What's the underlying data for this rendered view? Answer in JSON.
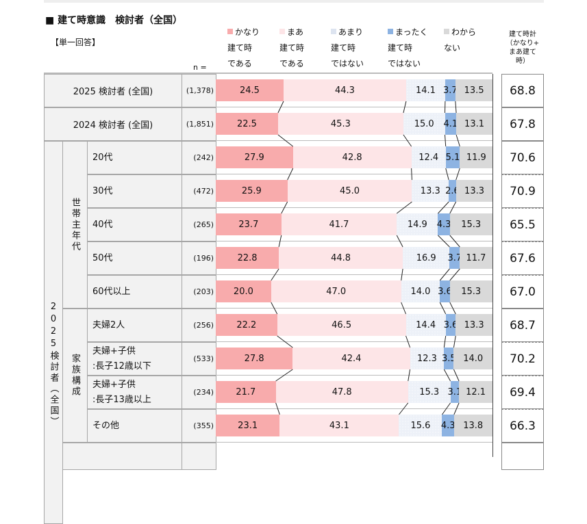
{
  "title": "■ 建て時意識　検討者（全国）",
  "subtitle": "【単一回答】",
  "n_label": "n =",
  "total_header": [
    "建て時計",
    "（かなり+",
    "まあ建て",
    "時）"
  ],
  "colors": {
    "kanari": "#f8abac",
    "maa": "#fde5e7",
    "amari": "#edf1f8",
    "mattaku": "#8db3e2",
    "wakaranai": "#d9d9d9"
  },
  "chart_data": {
    "type": "bar",
    "stacked": true,
    "orientation": "horizontal",
    "xlim": [
      0,
      100
    ],
    "legend": [
      {
        "key": "kanari",
        "lines": [
          "かなり",
          "建て時",
          "である"
        ]
      },
      {
        "key": "maa",
        "lines": [
          "まあ",
          "建て時",
          "である"
        ]
      },
      {
        "key": "amari",
        "lines": [
          "あまり",
          "建て時",
          "ではない"
        ]
      },
      {
        "key": "mattaku",
        "lines": [
          "まったく",
          "建て時",
          "ではない"
        ]
      },
      {
        "key": "wakaranai",
        "lines": [
          "わから",
          "ない"
        ]
      }
    ],
    "groups": [
      {
        "label": "2025検討者（全国）"
      },
      {
        "label": "世帯主年代"
      },
      {
        "label": "家族構成"
      }
    ],
    "rows": [
      {
        "label": "2025 検討者 (全国)",
        "n": "(1,378)",
        "values": [
          24.5,
          44.3,
          14.1,
          3.7,
          13.5
        ],
        "total": "68.8",
        "group": null
      },
      {
        "label": "2024 検討者 (全国)",
        "n": "(1,851)",
        "values": [
          22.5,
          45.3,
          15.0,
          4.1,
          13.1
        ],
        "total": "67.8",
        "group": null
      },
      {
        "label": "20代",
        "n": "(242)",
        "values": [
          27.9,
          42.8,
          12.4,
          5.1,
          11.9
        ],
        "total": "70.6",
        "group": 1
      },
      {
        "label": "30代",
        "n": "(472)",
        "values": [
          25.9,
          45.0,
          13.3,
          2.6,
          13.3
        ],
        "total": "70.9",
        "group": 1
      },
      {
        "label": "40代",
        "n": "(265)",
        "values": [
          23.7,
          41.7,
          14.9,
          4.3,
          15.3
        ],
        "total": "65.5",
        "group": 1
      },
      {
        "label": "50代",
        "n": "(196)",
        "values": [
          22.8,
          44.8,
          16.9,
          3.7,
          11.7
        ],
        "total": "67.6",
        "group": 1
      },
      {
        "label": "60代以上",
        "n": "(203)",
        "values": [
          20.0,
          47.0,
          14.0,
          3.6,
          15.3
        ],
        "total": "67.0",
        "group": 1
      },
      {
        "label": "夫婦2人",
        "n": "(256)",
        "values": [
          22.2,
          46.5,
          14.4,
          3.6,
          13.3
        ],
        "total": "68.7",
        "group": 2
      },
      {
        "label": "夫婦+子供\n:長子12歳以下",
        "n": "(533)",
        "values": [
          27.8,
          42.4,
          12.3,
          3.5,
          14.0
        ],
        "total": "70.2",
        "group": 2
      },
      {
        "label": "夫婦+子供\n:長子13歳以上",
        "n": "(234)",
        "values": [
          21.7,
          47.8,
          15.3,
          3.1,
          12.1
        ],
        "total": "69.4",
        "group": 2
      },
      {
        "label": "その他",
        "n": "(355)",
        "values": [
          23.1,
          43.1,
          15.6,
          4.3,
          13.8
        ],
        "total": "66.3",
        "group": 2
      }
    ]
  }
}
